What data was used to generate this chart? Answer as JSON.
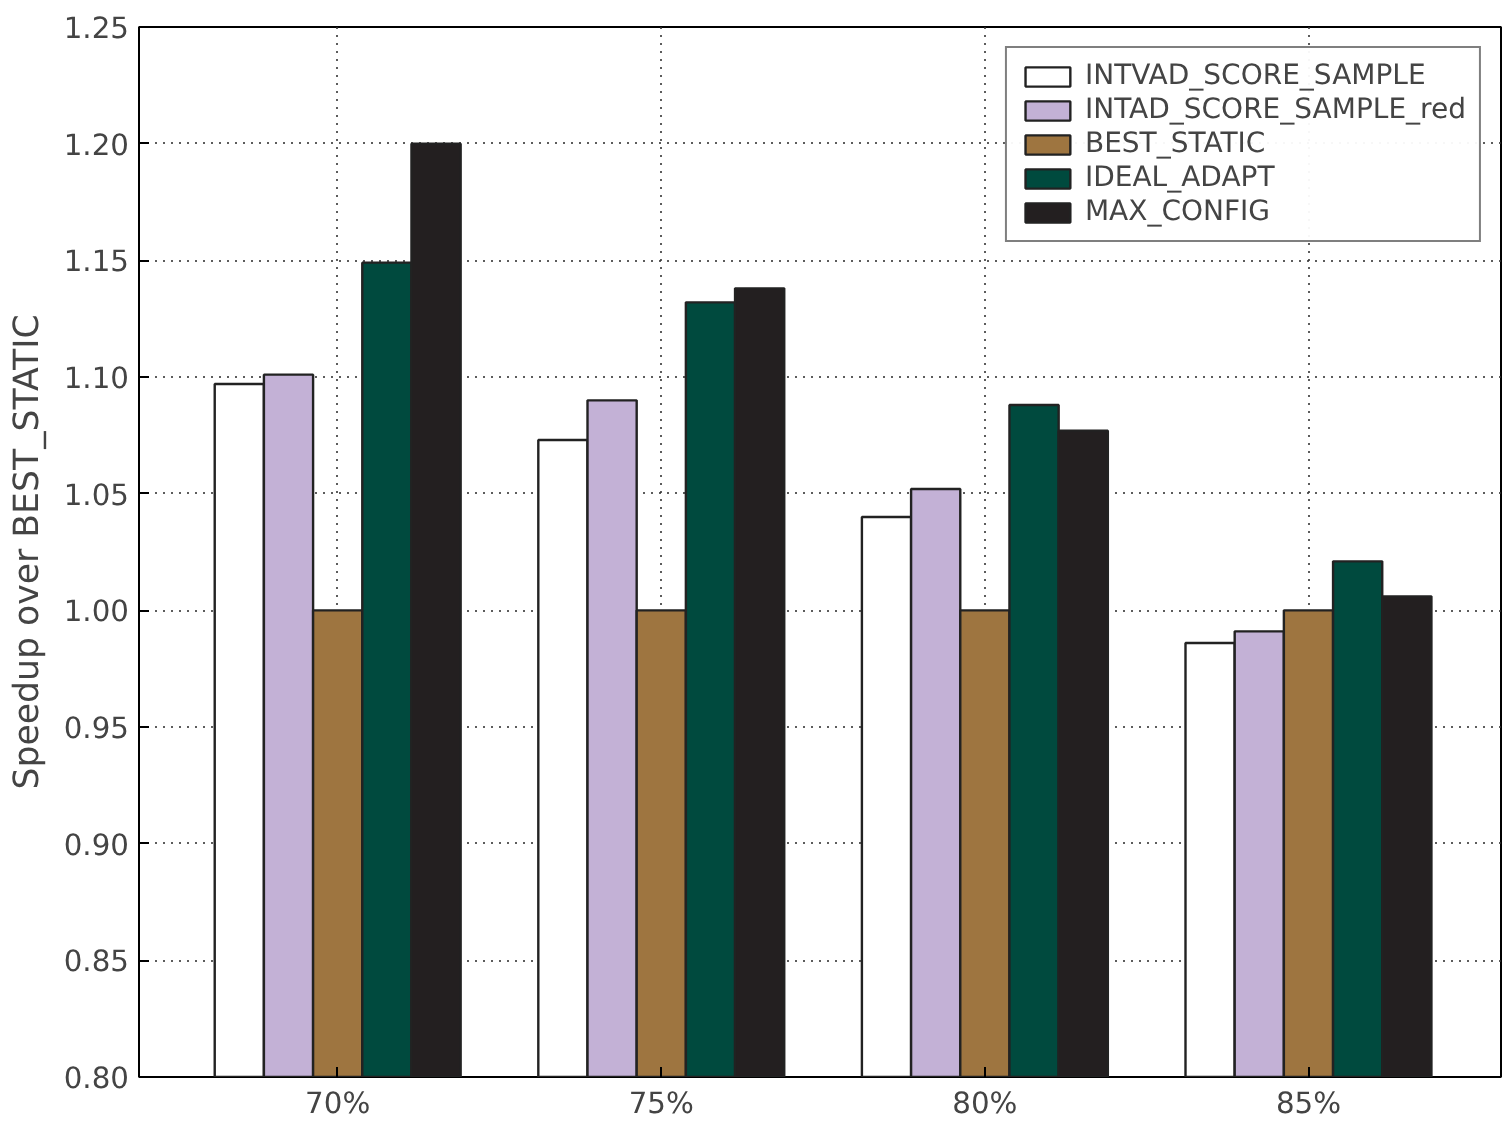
{
  "chart_data": {
    "type": "bar",
    "ylabel": "Speedup over BEST_STATIC",
    "categories": [
      "70%",
      "75%",
      "80%",
      "85%"
    ],
    "series": [
      {
        "name": "INTVAD_SCORE_SAMPLE",
        "color": "#ffffff",
        "values": [
          1.097,
          1.073,
          1.04,
          0.986
        ]
      },
      {
        "name": "INTAD_SCORE_SAMPLE_red",
        "color": "#c3b1d6",
        "values": [
          1.101,
          1.09,
          1.052,
          0.991
        ]
      },
      {
        "name": "BEST_STATIC",
        "color": "#9e7540",
        "values": [
          1.0,
          1.0,
          1.0,
          1.0
        ]
      },
      {
        "name": "IDEAL_ADAPT",
        "color": "#004a3e",
        "values": [
          1.149,
          1.132,
          1.088,
          1.021
        ]
      },
      {
        "name": "MAX_CONFIG",
        "color": "#231f20",
        "values": [
          1.2,
          1.138,
          1.077,
          1.006
        ]
      }
    ],
    "ylim": [
      0.8,
      1.25
    ],
    "yticks": [
      {
        "value": 0.8,
        "label": "0.80"
      },
      {
        "value": 0.85,
        "label": "0.85"
      },
      {
        "value": 0.9,
        "label": "0.90"
      },
      {
        "value": 0.95,
        "label": "0.95"
      },
      {
        "value": 1.0,
        "label": "1.00"
      },
      {
        "value": 1.05,
        "label": "1.05"
      },
      {
        "value": 1.1,
        "label": "1.10"
      },
      {
        "value": 1.15,
        "label": "1.15"
      },
      {
        "value": 1.2,
        "label": "1.20"
      },
      {
        "value": 1.25,
        "label": "1.25"
      }
    ],
    "grid": true,
    "legend": "top right"
  }
}
